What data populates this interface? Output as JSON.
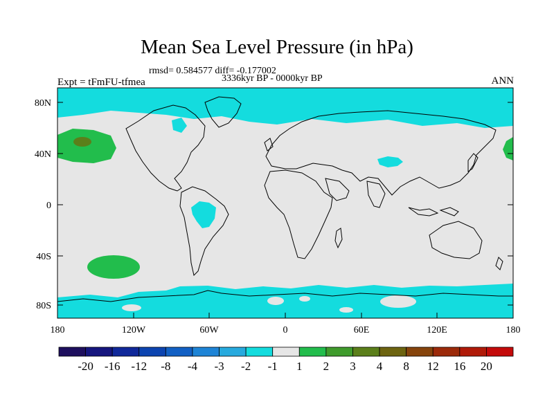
{
  "title": "Mean Sea Level Pressure (in hPa)",
  "stats": "rmsd= 0.584577 diff= -0.177002",
  "period": "3336kyr BP - 0000kyr BP",
  "experiment": "Expt = tFmFU-tfmea",
  "season": "ANN",
  "axes": {
    "lat_ticks": [
      "80N",
      "40N",
      "0",
      "40S",
      "80S"
    ],
    "lon_ticks": [
      "180",
      "120W",
      "60W",
      "0",
      "60E",
      "120E",
      "180"
    ]
  },
  "colorbar": {
    "labels": [
      "-20",
      "-16",
      "-12",
      "-8",
      "-4",
      "-3",
      "-2",
      "-1",
      "1",
      "2",
      "3",
      "4",
      "8",
      "12",
      "16",
      "20"
    ],
    "colors": [
      "#1e0f5e",
      "#16167e",
      "#10289a",
      "#0c44b0",
      "#1260c4",
      "#1e84d6",
      "#27aade",
      "#14dcde",
      "#e6e6e6",
      "#22bd4c",
      "#3f9b2c",
      "#5b7f1a",
      "#6d6410",
      "#86440c",
      "#9c2a0a",
      "#b01a08",
      "#c40a0a"
    ]
  },
  "legend_colors": {
    "background": "#e6e6e6",
    "negative_anomaly": "#14dcde",
    "positive_anomaly": "#22bd4c",
    "strong_positive": "#5b7f1a"
  }
}
